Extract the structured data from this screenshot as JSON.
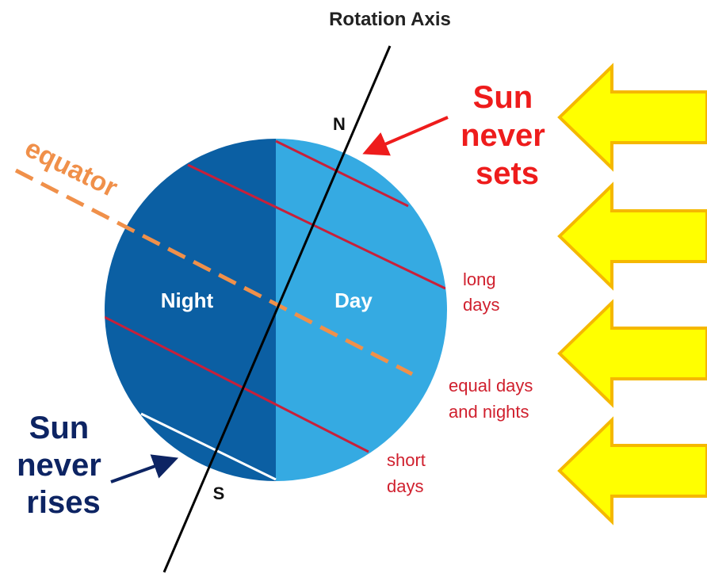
{
  "title": "Rotation Axis",
  "north": "N",
  "south": "S",
  "night": "Night",
  "day": "Day",
  "equator": "equator",
  "sun_never_sets": [
    "Sun",
    "never",
    "sets"
  ],
  "sun_never_rises": [
    "Sun",
    "never",
    "rises"
  ],
  "long_days": [
    "long",
    "days"
  ],
  "equal_days": [
    "equal days",
    "and nights"
  ],
  "short_days": [
    "short",
    "days"
  ]
}
